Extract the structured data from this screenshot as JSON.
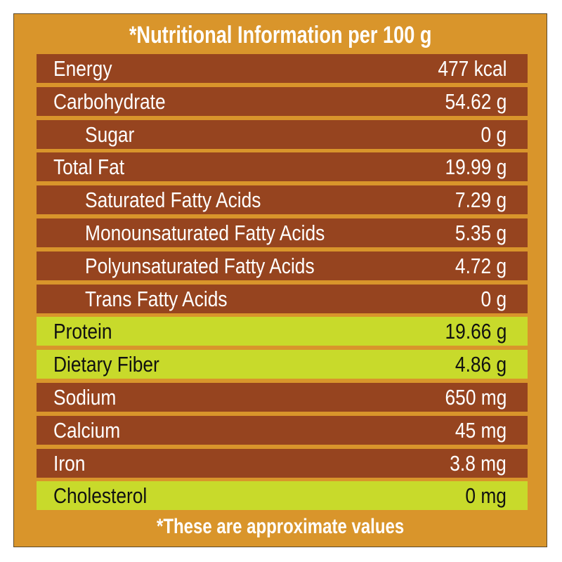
{
  "title": "*Nutritional Information per 100 g",
  "footer": "*These are approximate values",
  "colors": {
    "background": "#D9952B",
    "row_default": "#96441F",
    "row_highlight": "#C8DA2B"
  },
  "rows": [
    {
      "label": "Energy",
      "value": "477 kcal",
      "indent": false,
      "highlight": false
    },
    {
      "label": "Carbohydrate",
      "value": "54.62 g",
      "indent": false,
      "highlight": false
    },
    {
      "label": "Sugar",
      "value": "0 g",
      "indent": true,
      "highlight": false
    },
    {
      "label": "Total Fat",
      "value": "19.99 g",
      "indent": false,
      "highlight": false
    },
    {
      "label": "Saturated Fatty Acids",
      "value": "7.29 g",
      "indent": true,
      "highlight": false
    },
    {
      "label": "Monounsaturated Fatty Acids",
      "value": "5.35 g",
      "indent": true,
      "highlight": false
    },
    {
      "label": "Polyunsaturated Fatty Acids",
      "value": "4.72 g",
      "indent": true,
      "highlight": false
    },
    {
      "label": "Trans Fatty Acids",
      "value": "0 g",
      "indent": true,
      "highlight": false
    },
    {
      "label": "Protein",
      "value": "19.66 g",
      "indent": false,
      "highlight": true
    },
    {
      "label": "Dietary Fiber",
      "value": "4.86 g",
      "indent": false,
      "highlight": true
    },
    {
      "label": "Sodium",
      "value": "650 mg",
      "indent": false,
      "highlight": false
    },
    {
      "label": "Calcium",
      "value": "45 mg",
      "indent": false,
      "highlight": false
    },
    {
      "label": "Iron",
      "value": "3.8 mg",
      "indent": false,
      "highlight": false
    },
    {
      "label": "Cholesterol",
      "value": "0 mg",
      "indent": false,
      "highlight": true
    }
  ]
}
